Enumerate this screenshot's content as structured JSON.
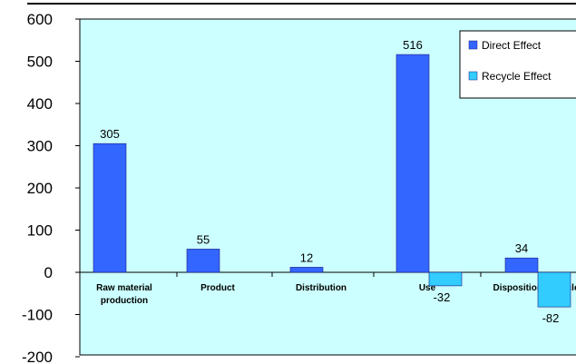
{
  "chart_data": {
    "type": "bar",
    "categories": [
      "Raw material production",
      "Product",
      "Distribution",
      "Use",
      "Disposition/Recycle"
    ],
    "series": [
      {
        "name": "Direct Effect",
        "values": [
          305,
          55,
          12,
          516,
          34
        ]
      },
      {
        "name": "Recycle Effect",
        "values": [
          null,
          null,
          null,
          -32,
          -82
        ]
      }
    ],
    "data_labels": {
      "Direct Effect": [
        "305",
        "55",
        "12",
        "516",
        "34"
      ],
      "Recycle Effect": [
        "",
        "",
        "",
        "-32",
        "-82"
      ]
    },
    "y_ticks": [
      "600",
      "500",
      "400",
      "300",
      "200",
      "100",
      "0",
      "-100",
      "-200"
    ],
    "ylim": [
      -200,
      600
    ],
    "title": "",
    "xlabel": "",
    "ylabel": "",
    "grid": false,
    "legend_position": "top-right",
    "colors": {
      "plot_background": "#ccffff",
      "Direct Effect": "#3366ff",
      "Recycle Effect": "#33ccff",
      "bar_edge": "#1a1a80"
    }
  }
}
